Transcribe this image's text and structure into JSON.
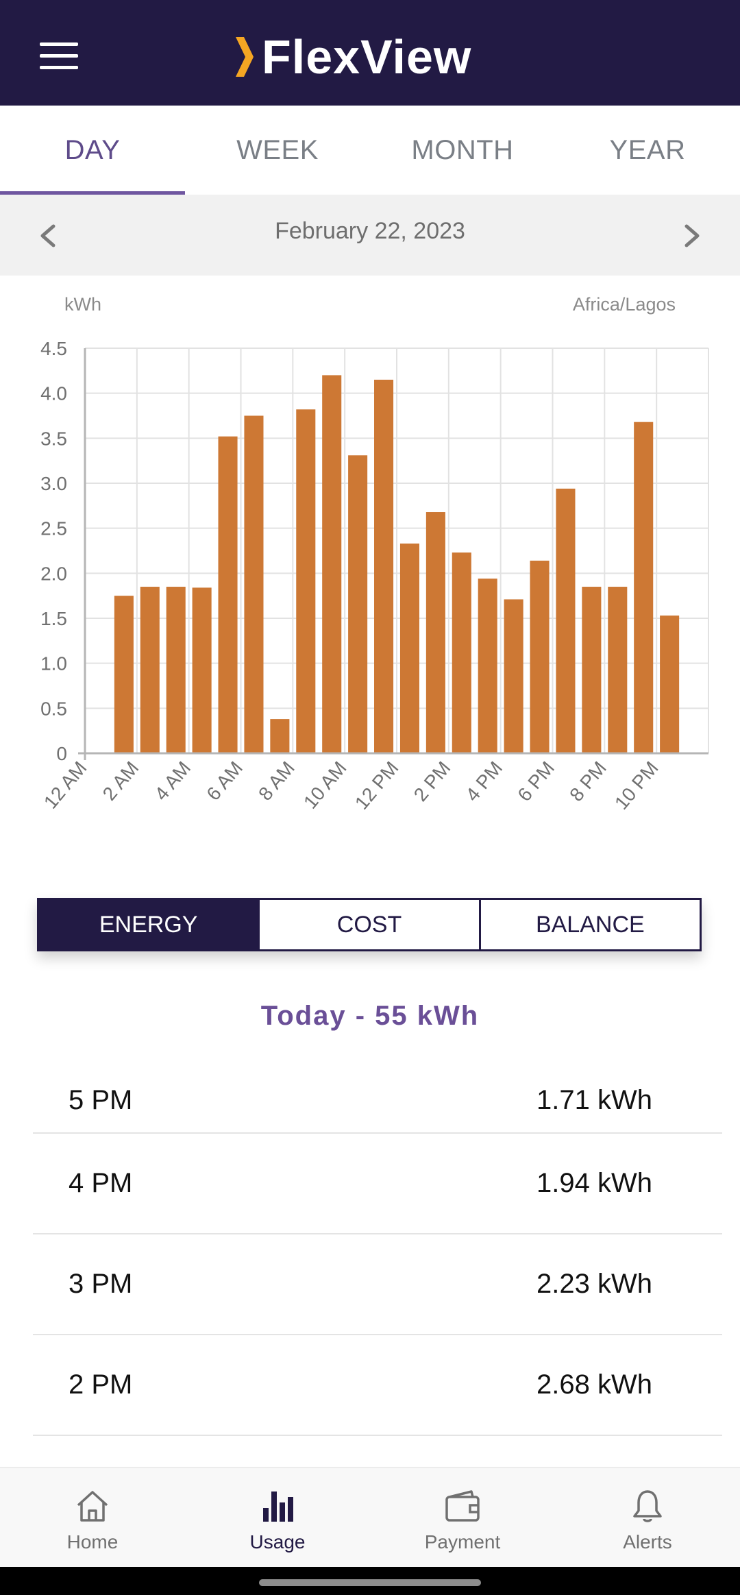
{
  "header": {
    "title": "FlexView"
  },
  "tabs": [
    {
      "label": "DAY",
      "active": true
    },
    {
      "label": "WEEK",
      "active": false
    },
    {
      "label": "MONTH",
      "active": false
    },
    {
      "label": "YEAR",
      "active": false
    }
  ],
  "date_nav": {
    "date": "February 22, 2023"
  },
  "chart_labels": {
    "unit": "kWh",
    "timezone": "Africa/Lagos"
  },
  "chart_data": {
    "type": "bar",
    "xlabel": "",
    "ylabel": "kWh",
    "ylim": [
      0,
      4.5
    ],
    "yticks": [
      "0",
      "0.5",
      "1.0",
      "1.5",
      "2.0",
      "2.5",
      "3.0",
      "3.5",
      "4.0",
      "4.5"
    ],
    "xticks": [
      "12 AM",
      "2 AM",
      "4 AM",
      "6 AM",
      "8 AM",
      "10 AM",
      "12 PM",
      "2 PM",
      "4 PM",
      "6 PM",
      "8 PM",
      "10 PM"
    ],
    "categories": [
      "12 AM",
      "1 AM",
      "2 AM",
      "3 AM",
      "4 AM",
      "5 AM",
      "6 AM",
      "7 AM",
      "8 AM",
      "9 AM",
      "10 AM",
      "11 AM",
      "12 PM",
      "1 PM",
      "2 PM",
      "3 PM",
      "4 PM",
      "5 PM",
      "6 PM",
      "7 PM",
      "8 PM",
      "9 PM",
      "10 PM",
      "11 PM"
    ],
    "values": [
      0,
      1.75,
      1.85,
      1.85,
      1.84,
      3.52,
      3.75,
      0.38,
      3.82,
      4.2,
      3.31,
      4.15,
      2.33,
      2.68,
      2.23,
      1.94,
      1.71,
      2.14,
      2.94,
      1.85,
      1.85,
      3.68,
      1.53,
      0
    ],
    "bar_color": "#cd7834",
    "grid": true
  },
  "segment": [
    {
      "label": "ENERGY",
      "active": true
    },
    {
      "label": "COST",
      "active": false
    },
    {
      "label": "BALANCE",
      "active": false
    }
  ],
  "summary": {
    "text": "Today -  55 kWh"
  },
  "readings": [
    {
      "time": "5 PM",
      "value": "1.71 kWh"
    },
    {
      "time": "4 PM",
      "value": "1.94 kWh"
    },
    {
      "time": "3 PM",
      "value": "2.23 kWh"
    },
    {
      "time": "2 PM",
      "value": "2.68 kWh"
    }
  ],
  "bottom_nav": [
    {
      "label": "Home",
      "icon": "home-icon",
      "active": false
    },
    {
      "label": "Usage",
      "icon": "bar-chart-icon",
      "active": true
    },
    {
      "label": "Payment",
      "icon": "wallet-icon",
      "active": false
    },
    {
      "label": "Alerts",
      "icon": "bell-icon",
      "active": false
    }
  ],
  "colors": {
    "brand_dark": "#221a44",
    "accent_purple": "#6f56a0",
    "logo_chevron": "#f5a623",
    "bar": "#cd7834"
  }
}
